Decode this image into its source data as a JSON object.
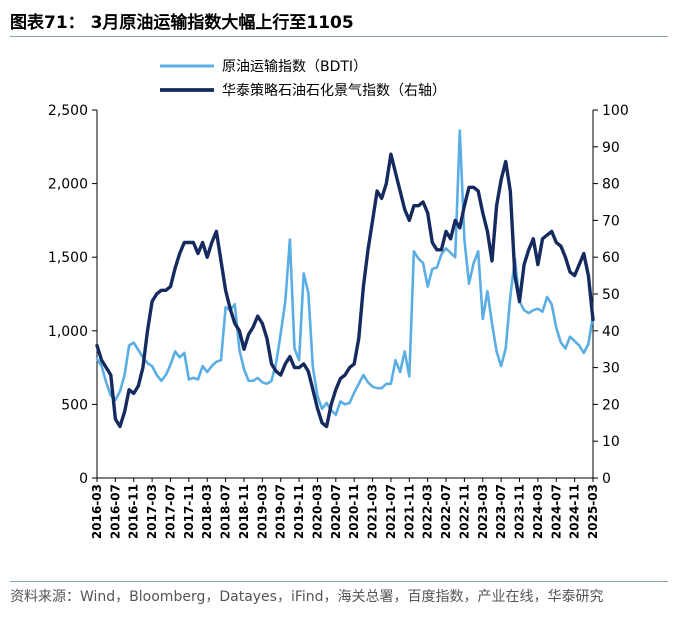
{
  "title": "图表71： 3月原油运输指数大幅上行至1105",
  "source": "资料来源：Wind，Bloomberg，Datayes，iFind，海关总署，百度指数，产业在线，华泰研究",
  "colors": {
    "bdti": "#5aaee3",
    "index": "#152a5e",
    "rule": "#8aa1b8"
  },
  "chart_data": {
    "type": "line",
    "title": "",
    "xlabel": "",
    "ylabel": "",
    "ylim": [
      0,
      2500
    ],
    "y2lim": [
      0,
      100
    ],
    "yticks": [
      0,
      500,
      1000,
      1500,
      2000,
      2500
    ],
    "yticklabels": [
      "0",
      "500",
      "1,000",
      "1,500",
      "2,000",
      "2,500"
    ],
    "y2ticks": [
      0,
      10,
      20,
      30,
      40,
      50,
      60,
      70,
      80,
      90,
      100
    ],
    "y2ticklabels": [
      "0",
      "10",
      "20",
      "30",
      "40",
      "50",
      "60",
      "70",
      "80",
      "90",
      "100"
    ],
    "xticks": [
      "2016-03",
      "2016-07",
      "2016-11",
      "2017-03",
      "2017-07",
      "2017-11",
      "2018-03",
      "2018-07",
      "2018-11",
      "2019-03",
      "2019-07",
      "2019-11",
      "2020-03",
      "2020-07",
      "2020-11",
      "2021-03",
      "2021-07",
      "2021-11",
      "2022-03",
      "2022-07",
      "2022-11",
      "2023-03",
      "2023-07",
      "2023-11",
      "2024-03",
      "2024-07",
      "2024-11",
      "2025-03"
    ],
    "legend_position": "top",
    "series": [
      {
        "name": "原油运输指数（BDTI）",
        "axis": "left",
        "points": [
          [
            "2016-03",
            810
          ],
          [
            "2016-04",
            760
          ],
          [
            "2016-05",
            650
          ],
          [
            "2016-06",
            560
          ],
          [
            "2016-07",
            530
          ],
          [
            "2016-08",
            590
          ],
          [
            "2016-09",
            700
          ],
          [
            "2016-10",
            900
          ],
          [
            "2016-11",
            920
          ],
          [
            "2016-12",
            870
          ],
          [
            "2017-01",
            820
          ],
          [
            "2017-02",
            780
          ],
          [
            "2017-03",
            760
          ],
          [
            "2017-04",
            700
          ],
          [
            "2017-05",
            660
          ],
          [
            "2017-06",
            700
          ],
          [
            "2017-07",
            770
          ],
          [
            "2017-08",
            860
          ],
          [
            "2017-09",
            820
          ],
          [
            "2017-10",
            850
          ],
          [
            "2017-11",
            670
          ],
          [
            "2017-12",
            680
          ],
          [
            "2018-01",
            670
          ],
          [
            "2018-02",
            760
          ],
          [
            "2018-03",
            720
          ],
          [
            "2018-04",
            760
          ],
          [
            "2018-05",
            790
          ],
          [
            "2018-06",
            800
          ],
          [
            "2018-07",
            1160
          ],
          [
            "2018-08",
            1140
          ],
          [
            "2018-09",
            1180
          ],
          [
            "2018-10",
            870
          ],
          [
            "2018-11",
            740
          ],
          [
            "2018-12",
            660
          ],
          [
            "2019-01",
            660
          ],
          [
            "2019-02",
            680
          ],
          [
            "2019-03",
            650
          ],
          [
            "2019-04",
            640
          ],
          [
            "2019-05",
            660
          ],
          [
            "2019-06",
            780
          ],
          [
            "2019-07",
            980
          ],
          [
            "2019-08",
            1200
          ],
          [
            "2019-09",
            1620
          ],
          [
            "2019-10",
            880
          ],
          [
            "2019-11",
            800
          ],
          [
            "2019-12",
            1390
          ],
          [
            "2020-01",
            1260
          ],
          [
            "2020-02",
            750
          ],
          [
            "2020-03",
            560
          ],
          [
            "2020-04",
            470
          ],
          [
            "2020-05",
            510
          ],
          [
            "2020-06",
            460
          ],
          [
            "2020-07",
            430
          ],
          [
            "2020-08",
            520
          ],
          [
            "2020-09",
            500
          ],
          [
            "2020-10",
            510
          ],
          [
            "2020-11",
            580
          ],
          [
            "2020-12",
            640
          ],
          [
            "2021-01",
            700
          ],
          [
            "2021-02",
            650
          ],
          [
            "2021-03",
            620
          ],
          [
            "2021-04",
            610
          ],
          [
            "2021-05",
            610
          ],
          [
            "2021-06",
            640
          ],
          [
            "2021-07",
            640
          ],
          [
            "2021-08",
            800
          ],
          [
            "2021-09",
            720
          ],
          [
            "2021-10",
            860
          ],
          [
            "2021-11",
            690
          ],
          [
            "2021-12",
            1540
          ],
          [
            "2022-01",
            1490
          ],
          [
            "2022-02",
            1460
          ],
          [
            "2022-03",
            1300
          ],
          [
            "2022-04",
            1420
          ],
          [
            "2022-05",
            1430
          ],
          [
            "2022-06",
            1520
          ],
          [
            "2022-07",
            1560
          ],
          [
            "2022-08",
            1530
          ],
          [
            "2022-09",
            1500
          ],
          [
            "2022-10",
            2360
          ],
          [
            "2022-11",
            1620
          ],
          [
            "2022-12",
            1320
          ],
          [
            "2023-01",
            1460
          ],
          [
            "2023-02",
            1540
          ],
          [
            "2023-03",
            1080
          ],
          [
            "2023-04",
            1270
          ],
          [
            "2023-05",
            1050
          ],
          [
            "2023-06",
            860
          ],
          [
            "2023-07",
            760
          ],
          [
            "2023-08",
            880
          ],
          [
            "2023-09",
            1230
          ],
          [
            "2023-10",
            1490
          ],
          [
            "2023-11",
            1200
          ],
          [
            "2023-12",
            1140
          ],
          [
            "2024-01",
            1120
          ],
          [
            "2024-02",
            1140
          ],
          [
            "2024-03",
            1150
          ],
          [
            "2024-04",
            1130
          ],
          [
            "2024-05",
            1230
          ],
          [
            "2024-06",
            1180
          ],
          [
            "2024-07",
            1020
          ],
          [
            "2024-08",
            920
          ],
          [
            "2024-09",
            880
          ],
          [
            "2024-10",
            960
          ],
          [
            "2024-11",
            930
          ],
          [
            "2024-12",
            900
          ],
          [
            "2025-01",
            850
          ],
          [
            "2025-02",
            910
          ],
          [
            "2025-03",
            1105
          ]
        ]
      },
      {
        "name": "华泰策略石油石化景气指数（右轴）",
        "axis": "right",
        "points": [
          [
            "2016-03",
            36
          ],
          [
            "2016-04",
            32
          ],
          [
            "2016-05",
            30
          ],
          [
            "2016-06",
            28
          ],
          [
            "2016-07",
            16
          ],
          [
            "2016-08",
            14
          ],
          [
            "2016-09",
            18
          ],
          [
            "2016-10",
            24
          ],
          [
            "2016-11",
            23
          ],
          [
            "2016-12",
            25
          ],
          [
            "2017-01",
            30
          ],
          [
            "2017-02",
            40
          ],
          [
            "2017-03",
            48
          ],
          [
            "2017-04",
            50
          ],
          [
            "2017-05",
            51
          ],
          [
            "2017-06",
            51
          ],
          [
            "2017-07",
            52
          ],
          [
            "2017-08",
            57
          ],
          [
            "2017-09",
            61
          ],
          [
            "2017-10",
            64
          ],
          [
            "2017-11",
            64
          ],
          [
            "2017-12",
            64
          ],
          [
            "2018-01",
            61
          ],
          [
            "2018-02",
            64
          ],
          [
            "2018-03",
            60
          ],
          [
            "2018-04",
            64
          ],
          [
            "2018-05",
            67
          ],
          [
            "2018-06",
            59
          ],
          [
            "2018-07",
            51
          ],
          [
            "2018-08",
            46
          ],
          [
            "2018-09",
            42
          ],
          [
            "2018-10",
            40
          ],
          [
            "2018-11",
            35
          ],
          [
            "2018-12",
            39
          ],
          [
            "2019-01",
            41
          ],
          [
            "2019-02",
            44
          ],
          [
            "2019-03",
            42
          ],
          [
            "2019-04",
            38
          ],
          [
            "2019-05",
            31
          ],
          [
            "2019-06",
            29
          ],
          [
            "2019-07",
            28
          ],
          [
            "2019-08",
            31
          ],
          [
            "2019-09",
            33
          ],
          [
            "2019-10",
            30
          ],
          [
            "2019-11",
            30
          ],
          [
            "2019-12",
            31
          ],
          [
            "2020-01",
            29
          ],
          [
            "2020-02",
            24
          ],
          [
            "2020-03",
            19
          ],
          [
            "2020-04",
            15
          ],
          [
            "2020-05",
            14
          ],
          [
            "2020-06",
            20
          ],
          [
            "2020-07",
            24
          ],
          [
            "2020-08",
            27
          ],
          [
            "2020-09",
            28
          ],
          [
            "2020-10",
            30
          ],
          [
            "2020-11",
            31
          ],
          [
            "2020-12",
            38
          ],
          [
            "2021-01",
            52
          ],
          [
            "2021-02",
            62
          ],
          [
            "2021-03",
            70
          ],
          [
            "2021-04",
            78
          ],
          [
            "2021-05",
            76
          ],
          [
            "2021-06",
            80
          ],
          [
            "2021-07",
            88
          ],
          [
            "2021-08",
            83
          ],
          [
            "2021-09",
            78
          ],
          [
            "2021-10",
            73
          ],
          [
            "2021-11",
            70
          ],
          [
            "2021-12",
            74
          ],
          [
            "2022-01",
            74
          ],
          [
            "2022-02",
            75
          ],
          [
            "2022-03",
            72
          ],
          [
            "2022-04",
            64
          ],
          [
            "2022-05",
            62
          ],
          [
            "2022-06",
            62
          ],
          [
            "2022-07",
            67
          ],
          [
            "2022-08",
            65
          ],
          [
            "2022-09",
            70
          ],
          [
            "2022-10",
            68
          ],
          [
            "2022-11",
            74
          ],
          [
            "2022-12",
            79
          ],
          [
            "2023-01",
            79
          ],
          [
            "2023-02",
            78
          ],
          [
            "2023-03",
            72
          ],
          [
            "2023-04",
            67
          ],
          [
            "2023-05",
            59
          ],
          [
            "2023-06",
            74
          ],
          [
            "2023-07",
            81
          ],
          [
            "2023-08",
            86
          ],
          [
            "2023-09",
            78
          ],
          [
            "2023-10",
            55
          ],
          [
            "2023-11",
            48
          ],
          [
            "2023-12",
            58
          ],
          [
            "2024-01",
            62
          ],
          [
            "2024-02",
            65
          ],
          [
            "2024-03",
            58
          ],
          [
            "2024-04",
            65
          ],
          [
            "2024-05",
            66
          ],
          [
            "2024-06",
            67
          ],
          [
            "2024-07",
            64
          ],
          [
            "2024-08",
            63
          ],
          [
            "2024-09",
            60
          ],
          [
            "2024-10",
            56
          ],
          [
            "2024-11",
            55
          ],
          [
            "2024-12",
            58
          ],
          [
            "2025-01",
            61
          ],
          [
            "2025-02",
            55
          ],
          [
            "2025-03",
            43
          ]
        ]
      }
    ]
  }
}
